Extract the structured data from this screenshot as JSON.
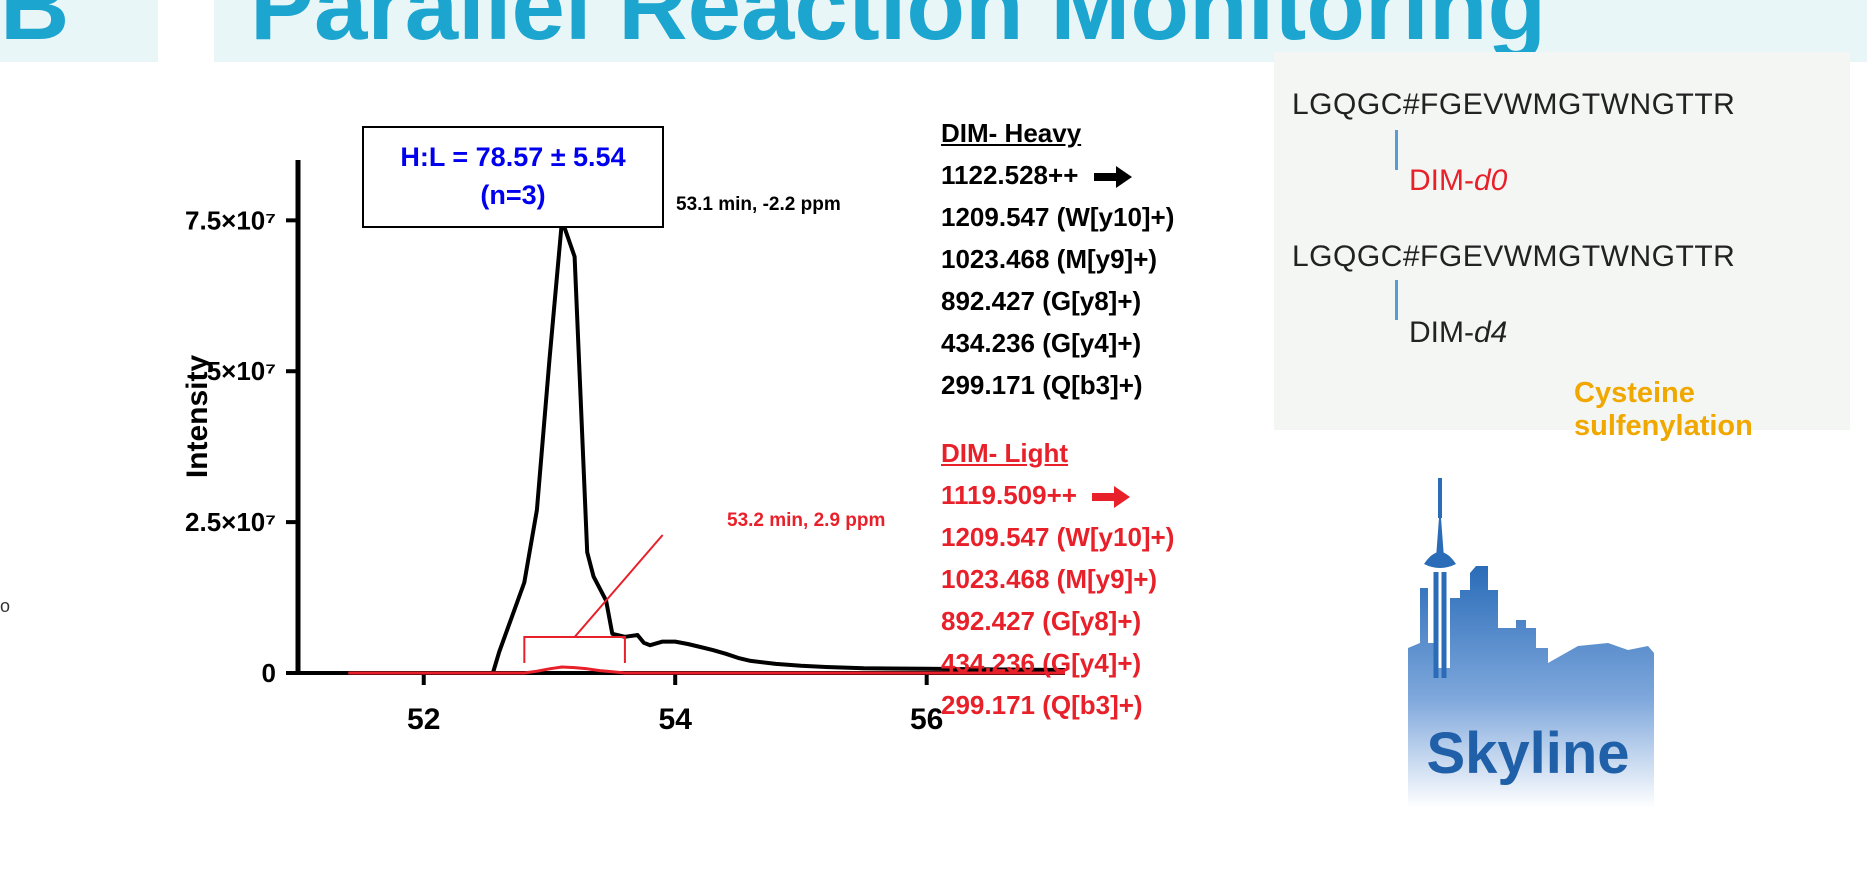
{
  "header": {
    "title": "Parallel Reaction Monitoring",
    "left_fragment": "B"
  },
  "stray_mark": "o",
  "chart_data": {
    "type": "line",
    "ylabel": "Intensity",
    "xlabel": "",
    "xlim": [
      51.0,
      57.1
    ],
    "ylim": [
      0,
      85000000
    ],
    "x_ticks": [
      52,
      54,
      56
    ],
    "x_tick_labels": [
      "52",
      "54",
      "56"
    ],
    "y_ticks": [
      0,
      25000000,
      50000000,
      75000000
    ],
    "y_tick_labels": [
      "0",
      "2.5×10⁷",
      "5×10⁷",
      "7.5×10⁷"
    ],
    "series": [
      {
        "name": "DIM- Heavy",
        "color": "#000000",
        "x": [
          51.0,
          52.0,
          52.55,
          52.6,
          52.8,
          52.9,
          53.0,
          53.1,
          53.2,
          53.3,
          53.35,
          53.45,
          53.5,
          53.6,
          53.7,
          53.75,
          53.8,
          53.9,
          54.0,
          54.1,
          54.2,
          54.3,
          54.4,
          54.5,
          54.6,
          54.8,
          55.0,
          55.2,
          55.5,
          56.0,
          56.5,
          57.1
        ],
        "y": [
          0,
          0,
          0,
          3500000,
          15000000,
          27000000,
          52000000,
          75000000,
          69000000,
          20000000,
          16000000,
          12000000,
          6500000,
          6000000,
          6300000,
          5000000,
          4600000,
          5200000,
          5200000,
          4800000,
          4300000,
          3800000,
          3200000,
          2500000,
          2000000,
          1500000,
          1200000,
          1000000,
          800000,
          700000,
          600000,
          500000
        ]
      },
      {
        "name": "DIM- Light",
        "color": "#e8202a",
        "x": [
          51.4,
          52.0,
          52.6,
          52.8,
          52.9,
          53.0,
          53.1,
          53.2,
          53.3,
          53.4,
          53.5,
          53.6,
          54.0,
          56.0,
          57.1
        ],
        "y": [
          0,
          0,
          0,
          0,
          300000,
          700000,
          1000000,
          900000,
          700000,
          400000,
          200000,
          0,
          0,
          0,
          0
        ]
      }
    ],
    "integration_bracket": {
      "x": [
        52.8,
        53.6
      ]
    },
    "annotations": {
      "ratio_line1": "H:L = 78.57 ± 5.54",
      "ratio_line2": "(n=3)",
      "heavy_peak": "53.1 min, -2.2 ppm",
      "light_peak": "53.2 min, 2.9 ppm"
    }
  },
  "legend": {
    "heavy": {
      "header": "DIM- Heavy",
      "precursor": "1122.528++",
      "ions": [
        "1209.547 (W[y10]+)",
        "1023.468 (M[y9]+)",
        "892.427 (G[y8]+)",
        "434.236 (G[y4]+)",
        "299.171 (Q[b3]+)"
      ]
    },
    "light": {
      "header": "DIM- Light",
      "precursor": "1119.509++",
      "ions": [
        "1209.547 (W[y10]+)",
        "1023.468 (M[y9]+)",
        "892.427 (G[y8]+)",
        "434.236 (G[y4]+)",
        "299.171 (Q[b3]+)"
      ]
    }
  },
  "panel": {
    "sequence1": "LGQGC#FGEVWMGTWNGTTR",
    "sequence2": "LGQGC#FGEVWMGTWNGTTR",
    "label_d0_prefix": "DIM-",
    "label_d0_suffix": "d0",
    "label_d4_prefix": "DIM-",
    "label_d4_suffix": "d4",
    "caption": "Cysteine sulfenylation"
  },
  "logo": {
    "text": "Skyline"
  },
  "colors": {
    "heavy": "#000000",
    "light": "#e8202a",
    "ratio": "#0000ee",
    "title": "#1ba5cf",
    "caption": "#f0a800"
  }
}
